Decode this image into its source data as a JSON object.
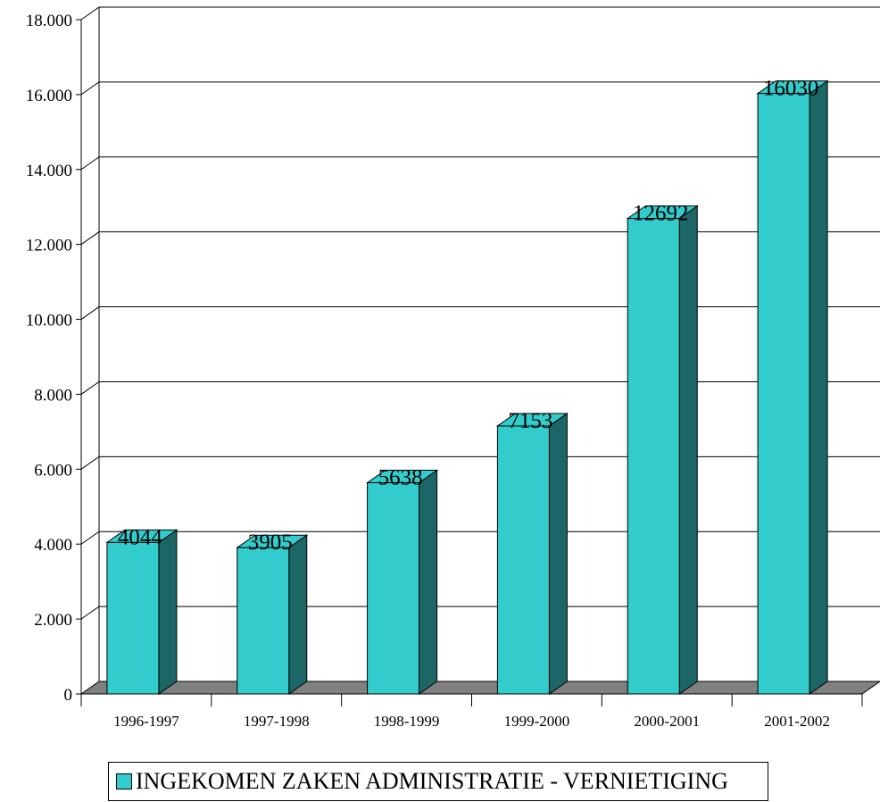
{
  "chart_data": {
    "type": "bar",
    "categories": [
      "1996-1997",
      "1997-1998",
      "1998-1999",
      "1999-2000",
      "2000-2001",
      "2001-2002"
    ],
    "series": [
      {
        "name": "INGEKOMEN ZAKEN ADMINISTRATIE - VERNIETIGING",
        "values": [
          4044,
          3905,
          5638,
          7153,
          12692,
          16030
        ],
        "color": "#33CCCC",
        "side_color": "#1C6666"
      }
    ],
    "data_labels": [
      "4044",
      "3905",
      "5638",
      "7153",
      "12692",
      "16030"
    ],
    "yticks": [
      "0",
      "2.000",
      "4.000",
      "6.000",
      "8.000",
      "10.000",
      "12.000",
      "14.000",
      "16.000",
      "18.000"
    ],
    "ylim": [
      0,
      18000
    ],
    "grid": true,
    "legend_position": "bottom",
    "floor_color": "#808080",
    "title": "",
    "xlabel": "",
    "ylabel": ""
  }
}
